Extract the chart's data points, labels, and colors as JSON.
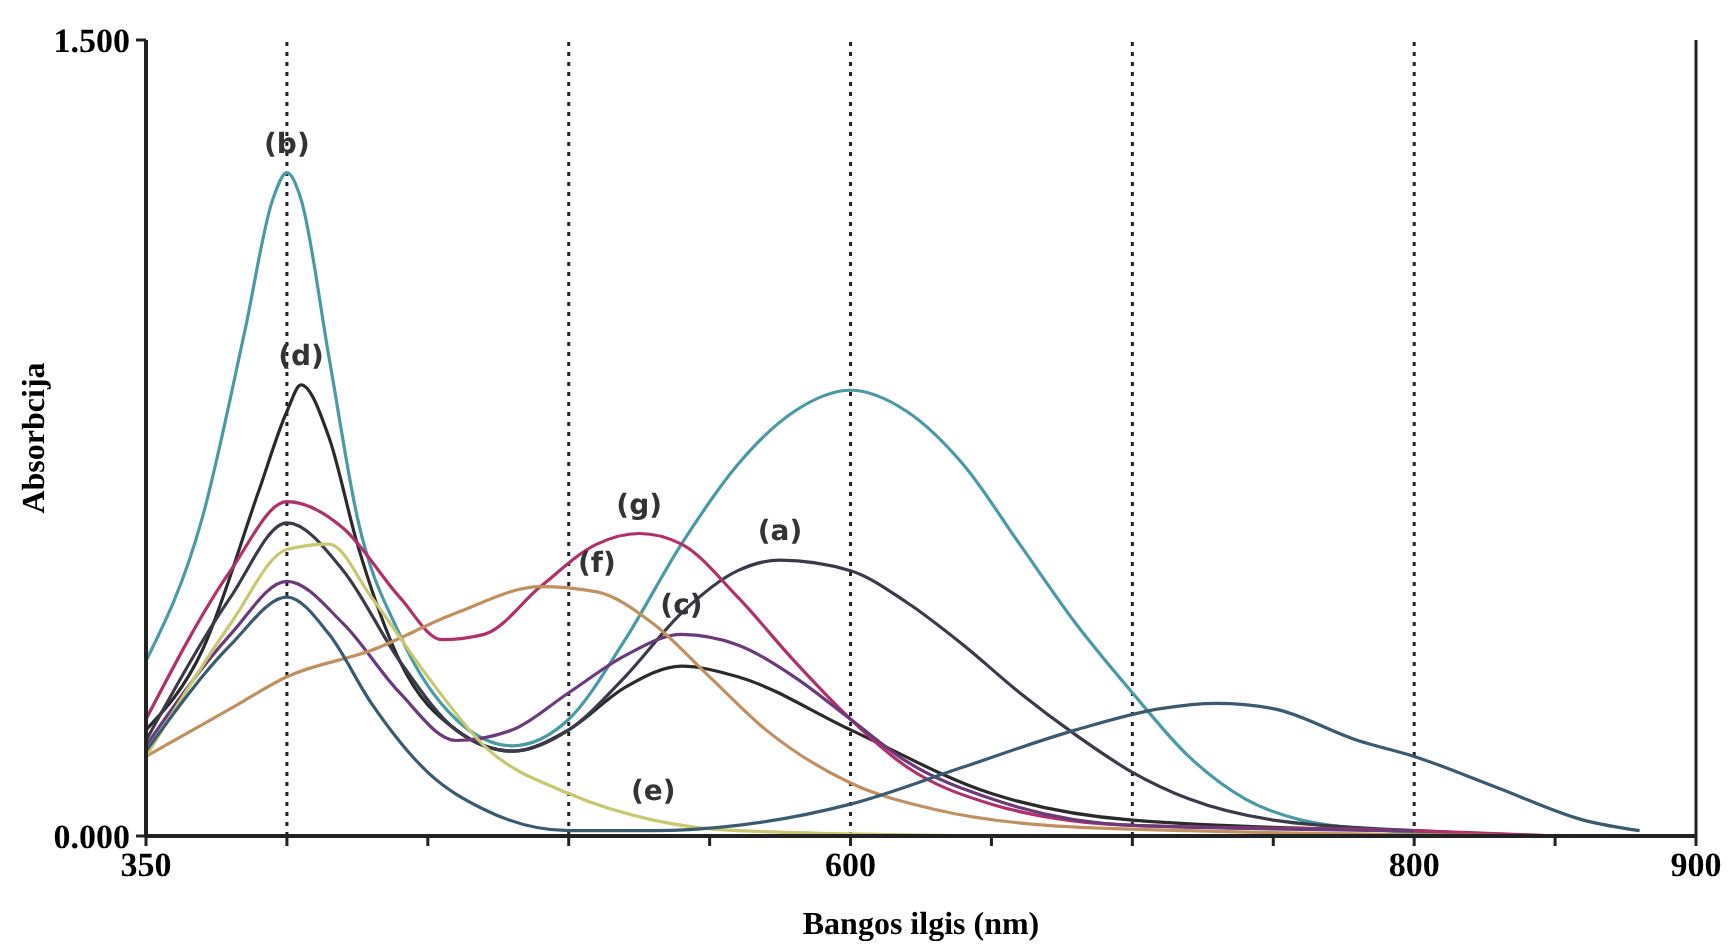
{
  "chart_data": {
    "type": "line",
    "xlabel": "Bangos ilgis (nm)",
    "ylabel": "Absorbcija",
    "xlim": [
      350,
      900
    ],
    "ylim": [
      0,
      1.5
    ],
    "xticks": [
      350,
      {
        "value": 400,
        "label": null
      },
      {
        "value": 450,
        "label": null
      },
      {
        "value": 500,
        "label": null
      },
      {
        "value": 550,
        "label": null
      },
      600,
      {
        "value": 650,
        "label": null
      },
      {
        "value": 700,
        "label": null
      },
      {
        "value": 750,
        "label": null
      },
      800,
      {
        "value": 850,
        "label": null
      },
      900
    ],
    "yticks": [
      {
        "value": 0,
        "label": "0.000"
      },
      {
        "value": 1.5,
        "label": "1.500"
      }
    ],
    "ref_lines": [
      {
        "axis": "x",
        "value": 400,
        "line_style": "dotted",
        "color": "#222222"
      },
      {
        "axis": "x",
        "value": 500,
        "line_style": "dotted",
        "color": "#222222"
      },
      {
        "axis": "x",
        "value": 600,
        "line_style": "dotted",
        "color": "#222222"
      },
      {
        "axis": "x",
        "value": 700,
        "line_style": "dotted",
        "color": "#222222"
      },
      {
        "axis": "x",
        "value": 800,
        "line_style": "dotted",
        "color": "#222222"
      }
    ],
    "series": [
      {
        "color": "#4a9aa5",
        "x": [
          350,
          370,
          385,
          395,
          400,
          405,
          415,
          425,
          440,
          460,
          480,
          500,
          520,
          540,
          560,
          580,
          600,
          620,
          640,
          660,
          680,
          700,
          720,
          740,
          760,
          790,
          820
        ],
        "values": [
          0.33,
          0.6,
          0.95,
          1.2,
          1.25,
          1.2,
          0.9,
          0.6,
          0.38,
          0.22,
          0.17,
          0.22,
          0.37,
          0.55,
          0.7,
          0.8,
          0.84,
          0.8,
          0.7,
          0.55,
          0.4,
          0.27,
          0.15,
          0.07,
          0.03,
          0.01,
          0
        ]
      },
      {
        "color": "#2a2a2a",
        "x": [
          350,
          370,
          390,
          400,
          405,
          415,
          425,
          440,
          460,
          480,
          500,
          520,
          540,
          560,
          600,
          650,
          700,
          800
        ],
        "values": [
          0.2,
          0.35,
          0.65,
          0.8,
          0.85,
          0.75,
          0.55,
          0.33,
          0.2,
          0.16,
          0.2,
          0.28,
          0.32,
          0.3,
          0.2,
          0.08,
          0.03,
          0.01
        ]
      },
      {
        "color": "#3a3a48",
        "x": [
          350,
          380,
          400,
          420,
          440,
          460,
          480,
          500,
          520,
          540,
          560,
          575,
          600,
          620,
          640,
          660,
          680,
          700,
          720,
          750,
          800,
          850
        ],
        "values": [
          0.18,
          0.45,
          0.59,
          0.5,
          0.33,
          0.2,
          0.16,
          0.2,
          0.3,
          0.42,
          0.5,
          0.52,
          0.5,
          0.44,
          0.36,
          0.27,
          0.19,
          0.12,
          0.07,
          0.03,
          0.01,
          0
        ]
      },
      {
        "color": "#b0306a",
        "x": [
          350,
          380,
          400,
          420,
          440,
          455,
          470,
          490,
          510,
          525,
          540,
          560,
          580,
          600,
          620,
          650,
          700,
          800,
          850
        ],
        "values": [
          0.22,
          0.5,
          0.63,
          0.58,
          0.45,
          0.37,
          0.38,
          0.47,
          0.55,
          0.57,
          0.55,
          0.45,
          0.33,
          0.22,
          0.13,
          0.06,
          0.02,
          0.01,
          0
        ]
      },
      {
        "color": "#6a3a7a",
        "x": [
          350,
          380,
          400,
          420,
          440,
          460,
          480,
          500,
          520,
          540,
          560,
          580,
          600,
          620,
          650,
          700,
          800
        ],
        "values": [
          0.17,
          0.38,
          0.48,
          0.4,
          0.27,
          0.18,
          0.2,
          0.27,
          0.34,
          0.38,
          0.36,
          0.3,
          0.22,
          0.14,
          0.07,
          0.02,
          0.01
        ]
      },
      {
        "color": "#c09060",
        "x": [
          350,
          380,
          400,
          430,
          460,
          490,
          510,
          530,
          550,
          570,
          600,
          630,
          670,
          720,
          850
        ],
        "values": [
          0.15,
          0.24,
          0.3,
          0.35,
          0.42,
          0.47,
          0.46,
          0.4,
          0.3,
          0.2,
          0.1,
          0.05,
          0.02,
          0.01,
          0
        ]
      },
      {
        "color": "#c8c870",
        "x": [
          350,
          380,
          400,
          415,
          430,
          450,
          470,
          500,
          530,
          560,
          650
        ],
        "values": [
          0.15,
          0.4,
          0.54,
          0.55,
          0.45,
          0.3,
          0.17,
          0.08,
          0.03,
          0.01,
          0
        ]
      },
      {
        "color": "#3a5a70",
        "x": [
          350,
          380,
          400,
          415,
          430,
          450,
          470,
          500,
          530,
          560,
          600,
          640,
          680,
          710,
          730,
          750,
          780,
          800,
          830,
          860,
          880
        ],
        "values": [
          0.16,
          0.36,
          0.45,
          0.38,
          0.25,
          0.12,
          0.05,
          0.01,
          0.01,
          0.02,
          0.06,
          0.13,
          0.2,
          0.24,
          0.25,
          0.24,
          0.18,
          0.15,
          0.09,
          0.03,
          0.01
        ]
      }
    ],
    "annotations": [
      {
        "text": "(b)",
        "x": 400,
        "y": 1.25
      },
      {
        "text": "(d)",
        "x": 405,
        "y": 0.85
      },
      {
        "text": "(g)",
        "x": 525,
        "y": 0.57
      },
      {
        "text": "(f)",
        "x": 510,
        "y": 0.46
      },
      {
        "text": "(a)",
        "x": 575,
        "y": 0.52
      },
      {
        "text": "(c)",
        "x": 540,
        "y": 0.38
      },
      {
        "text": "(e)",
        "x": 530,
        "y": 0.03
      }
    ],
    "marker": "none",
    "line_style": "solid",
    "grid": false
  }
}
